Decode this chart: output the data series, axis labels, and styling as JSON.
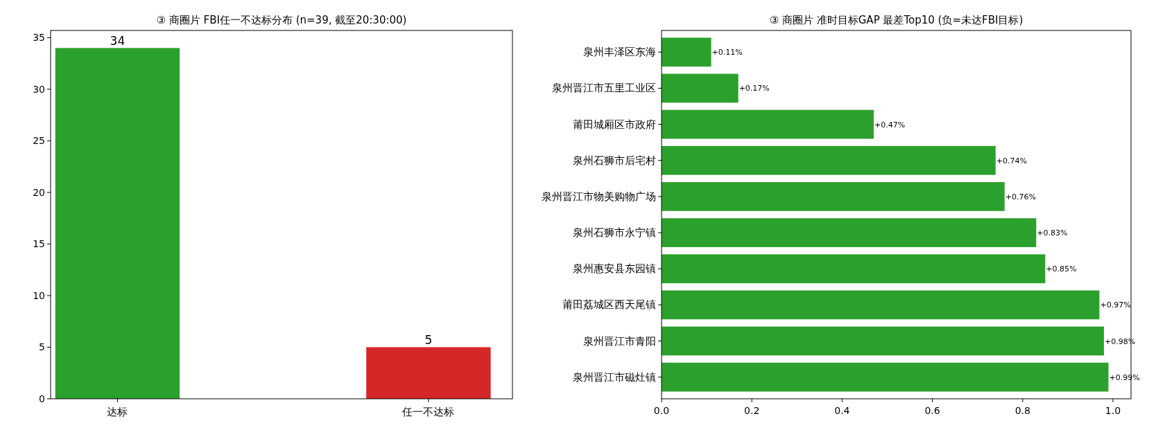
{
  "chart_data": [
    {
      "type": "bar",
      "title": "③ 商圈片 FBI任一不达标分布 (n=39, 截至20:30:00)",
      "categories": [
        "达标",
        "任一不达标"
      ],
      "values": [
        34,
        5
      ],
      "colors": [
        "#2ca02c",
        "#d62728"
      ],
      "ylim": [
        0,
        35.7
      ],
      "yticks": [
        0,
        5,
        10,
        15,
        20,
        25,
        30,
        35
      ],
      "data_labels": true
    },
    {
      "type": "bar",
      "title": "③ 商圈片 准时目标GAP 最差Top10 (负=未达FBI目标)",
      "orientation": "horizontal",
      "categories": [
        "泉州丰泽区东海",
        "泉州晋江市五里工业区",
        "莆田城厢区市政府",
        "泉州石狮市后宅村",
        "泉州晋江市物美购物广场",
        "泉州石狮市永宁镇",
        "泉州惠安县东园镇",
        "莆田荔城区西天尾镇",
        "泉州晋江市青阳",
        "泉州晋江市磁灶镇"
      ],
      "values": [
        0.11,
        0.17,
        0.47,
        0.74,
        0.76,
        0.83,
        0.85,
        0.97,
        0.98,
        0.99
      ],
      "color": "#2ca02c",
      "value_labels": [
        "+0.11%",
        "+0.17%",
        "+0.47%",
        "+0.74%",
        "+0.76%",
        "+0.83%",
        "+0.85%",
        "+0.97%",
        "+0.98%",
        "+0.99%"
      ],
      "xlim": [
        0,
        1.04
      ],
      "xticks": [
        {
          "value": 0,
          "label": "0.0"
        },
        0.2,
        0.4,
        0.6,
        0.8,
        {
          "value": 1,
          "label": "1.0"
        }
      ]
    }
  ]
}
